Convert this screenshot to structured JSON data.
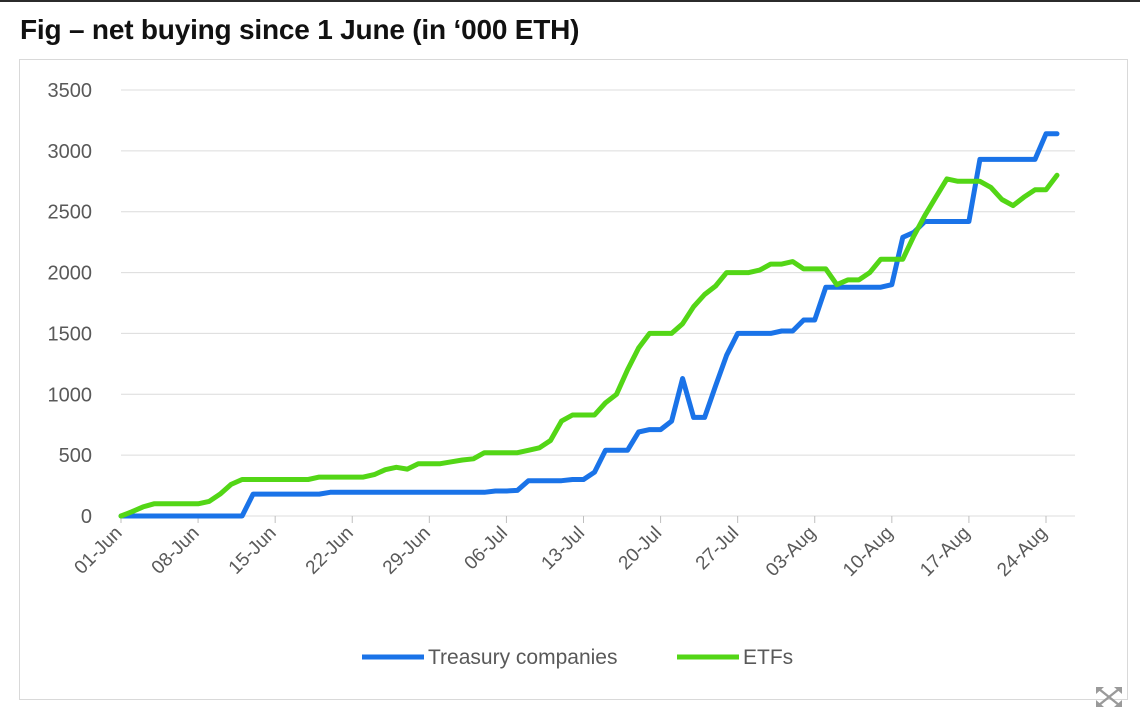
{
  "title": "Fig – net buying since 1 June (in ‘000 ETH)",
  "icons": {
    "expand": "expand-icon"
  },
  "colors": {
    "treasury": "#1a73e8",
    "etfs": "#53d616",
    "grid": "#dcdcdc",
    "tick_text": "#595959"
  },
  "chart_data": {
    "type": "line",
    "title": "Fig – net buying since 1 June (in ‘000 ETH)",
    "xlabel": "",
    "ylabel": "",
    "ylim": [
      0,
      3500
    ],
    "yticks": [
      0,
      500,
      1000,
      1500,
      2000,
      2500,
      3000,
      3500
    ],
    "xticks": [
      {
        "label": "01-Jun",
        "day": 0
      },
      {
        "label": "08-Jun",
        "day": 7
      },
      {
        "label": "15-Jun",
        "day": 14
      },
      {
        "label": "22-Jun",
        "day": 21
      },
      {
        "label": "29-Jun",
        "day": 28
      },
      {
        "label": "06-Jul",
        "day": 35
      },
      {
        "label": "13-Jul",
        "day": 42
      },
      {
        "label": "20-Jul",
        "day": 49
      },
      {
        "label": "27-Jul",
        "day": 56
      },
      {
        "label": "03-Aug",
        "day": 63
      },
      {
        "label": "10-Aug",
        "day": 70
      },
      {
        "label": "17-Aug",
        "day": 77
      },
      {
        "label": "24-Aug",
        "day": 84
      }
    ],
    "xlim": [
      0,
      85
    ],
    "grid": true,
    "legend_position": "bottom",
    "series": [
      {
        "name": "Treasury companies",
        "color": "#1a73e8",
        "points": [
          [
            0,
            0
          ],
          [
            1,
            0
          ],
          [
            2,
            0
          ],
          [
            3,
            0
          ],
          [
            4,
            0
          ],
          [
            5,
            0
          ],
          [
            6,
            0
          ],
          [
            7,
            0
          ],
          [
            8,
            0
          ],
          [
            9,
            0
          ],
          [
            10,
            0
          ],
          [
            11,
            0
          ],
          [
            12,
            180
          ],
          [
            13,
            180
          ],
          [
            14,
            180
          ],
          [
            15,
            180
          ],
          [
            16,
            180
          ],
          [
            17,
            180
          ],
          [
            18,
            180
          ],
          [
            19,
            195
          ],
          [
            20,
            195
          ],
          [
            21,
            195
          ],
          [
            22,
            195
          ],
          [
            23,
            195
          ],
          [
            24,
            195
          ],
          [
            25,
            195
          ],
          [
            26,
            195
          ],
          [
            27,
            195
          ],
          [
            28,
            195
          ],
          [
            29,
            195
          ],
          [
            30,
            195
          ],
          [
            31,
            195
          ],
          [
            32,
            195
          ],
          [
            33,
            195
          ],
          [
            34,
            205
          ],
          [
            35,
            205
          ],
          [
            36,
            210
          ],
          [
            37,
            290
          ],
          [
            38,
            290
          ],
          [
            39,
            290
          ],
          [
            40,
            290
          ],
          [
            41,
            300
          ],
          [
            42,
            300
          ],
          [
            43,
            360
          ],
          [
            44,
            540
          ],
          [
            45,
            540
          ],
          [
            46,
            540
          ],
          [
            47,
            690
          ],
          [
            48,
            710
          ],
          [
            49,
            710
          ],
          [
            50,
            780
          ],
          [
            51,
            1130
          ],
          [
            52,
            810
          ],
          [
            53,
            810
          ],
          [
            54,
            1070
          ],
          [
            55,
            1320
          ],
          [
            56,
            1500
          ],
          [
            57,
            1500
          ],
          [
            58,
            1500
          ],
          [
            59,
            1500
          ],
          [
            60,
            1520
          ],
          [
            61,
            1520
          ],
          [
            62,
            1610
          ],
          [
            63,
            1610
          ],
          [
            64,
            1880
          ],
          [
            65,
            1880
          ],
          [
            66,
            1880
          ],
          [
            67,
            1880
          ],
          [
            68,
            1880
          ],
          [
            69,
            1880
          ],
          [
            70,
            1900
          ],
          [
            71,
            2290
          ],
          [
            72,
            2330
          ],
          [
            73,
            2420
          ],
          [
            74,
            2420
          ],
          [
            75,
            2420
          ],
          [
            76,
            2420
          ],
          [
            77,
            2420
          ],
          [
            78,
            2930
          ],
          [
            79,
            2930
          ],
          [
            80,
            2930
          ],
          [
            81,
            2930
          ],
          [
            82,
            2930
          ],
          [
            83,
            2930
          ],
          [
            84,
            3140
          ],
          [
            85,
            3140
          ]
        ]
      },
      {
        "name": "ETFs",
        "color": "#53d616",
        "points": [
          [
            0,
            0
          ],
          [
            1,
            35
          ],
          [
            2,
            75
          ],
          [
            3,
            100
          ],
          [
            4,
            100
          ],
          [
            5,
            100
          ],
          [
            6,
            100
          ],
          [
            7,
            100
          ],
          [
            8,
            120
          ],
          [
            9,
            180
          ],
          [
            10,
            260
          ],
          [
            11,
            300
          ],
          [
            12,
            300
          ],
          [
            13,
            300
          ],
          [
            14,
            300
          ],
          [
            15,
            300
          ],
          [
            16,
            300
          ],
          [
            17,
            300
          ],
          [
            18,
            320
          ],
          [
            19,
            320
          ],
          [
            20,
            320
          ],
          [
            21,
            320
          ],
          [
            22,
            320
          ],
          [
            23,
            340
          ],
          [
            24,
            380
          ],
          [
            25,
            400
          ],
          [
            26,
            385
          ],
          [
            27,
            430
          ],
          [
            28,
            430
          ],
          [
            29,
            430
          ],
          [
            30,
            445
          ],
          [
            31,
            460
          ],
          [
            32,
            470
          ],
          [
            33,
            520
          ],
          [
            34,
            520
          ],
          [
            35,
            520
          ],
          [
            36,
            520
          ],
          [
            37,
            540
          ],
          [
            38,
            560
          ],
          [
            39,
            620
          ],
          [
            40,
            780
          ],
          [
            41,
            830
          ],
          [
            42,
            830
          ],
          [
            43,
            830
          ],
          [
            44,
            930
          ],
          [
            45,
            1000
          ],
          [
            46,
            1200
          ],
          [
            47,
            1380
          ],
          [
            48,
            1500
          ],
          [
            49,
            1500
          ],
          [
            50,
            1500
          ],
          [
            51,
            1580
          ],
          [
            52,
            1720
          ],
          [
            53,
            1820
          ],
          [
            54,
            1890
          ],
          [
            55,
            2000
          ],
          [
            56,
            2000
          ],
          [
            57,
            2000
          ],
          [
            58,
            2020
          ],
          [
            59,
            2070
          ],
          [
            60,
            2070
          ],
          [
            61,
            2090
          ],
          [
            62,
            2030
          ],
          [
            63,
            2030
          ],
          [
            64,
            2030
          ],
          [
            65,
            1900
          ],
          [
            66,
            1940
          ],
          [
            67,
            1940
          ],
          [
            68,
            2000
          ],
          [
            69,
            2110
          ],
          [
            70,
            2110
          ],
          [
            71,
            2110
          ],
          [
            72,
            2300
          ],
          [
            73,
            2470
          ],
          [
            74,
            2620
          ],
          [
            75,
            2770
          ],
          [
            76,
            2750
          ],
          [
            77,
            2750
          ],
          [
            78,
            2750
          ],
          [
            79,
            2700
          ],
          [
            80,
            2600
          ],
          [
            81,
            2550
          ],
          [
            82,
            2620
          ],
          [
            83,
            2680
          ],
          [
            84,
            2680
          ],
          [
            85,
            2800
          ]
        ]
      }
    ]
  }
}
